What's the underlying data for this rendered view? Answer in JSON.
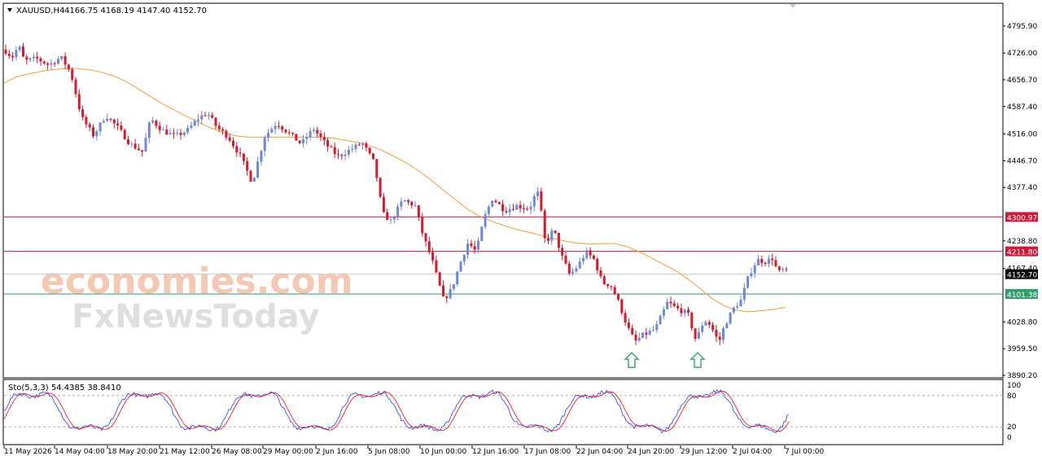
{
  "header": {
    "menu_icon": "triangle-down-icon",
    "symbol": "XAUUSD,H4",
    "ohlc": "4166.75 4168.19 4147.40 4152.70"
  },
  "watermark": {
    "line1": "economies.com",
    "line2": "FxNewsToday"
  },
  "oscillator": {
    "label": "Sto(5,3,3) 54.4385 38.8410",
    "levels": [
      100,
      80,
      20,
      0
    ],
    "main_color": "#1e3fff",
    "signal_color": "#ff0000"
  },
  "colors": {
    "bull": "#6a88de",
    "bear": "#d8182b",
    "ma": "#f0a030",
    "resistance": "#cc1a3a",
    "support": "#2e9e6b",
    "arrow": "#3aaa6e"
  },
  "chart_data": {
    "type": "candlestick",
    "symbol": "XAUUSD",
    "timeframe": "H4",
    "y_ticks": [
      "4795.90",
      "4726.00",
      "4656.70",
      "4587.40",
      "4516.00",
      "4446.70",
      "4377.40",
      "4238.80",
      "4167.40",
      "4028.80",
      "3959.50",
      "3890.20"
    ],
    "x_ticks": [
      "11 May 2026",
      "14 May 04:00",
      "18 May 20:00",
      "21 May 12:00",
      "26 May 08:00",
      "29 May 00:00",
      "2 Jun 16:00",
      "5 Jun 08:00",
      "10 Jun 00:00",
      "12 Jun 16:00",
      "17 Jun 08:00",
      "22 Jun 04:00",
      "24 Jun 20:00",
      "29 Jun 12:00",
      "2 Jul 04:00",
      "7 Jul 00:00"
    ],
    "ylim": [
      3890.2,
      4795.9
    ],
    "current_price": "4152.70",
    "levels": [
      {
        "value": 4300.97,
        "label": "4300.97",
        "kind": "resistance"
      },
      {
        "value": 4211.8,
        "label": "4211.80",
        "kind": "resistance"
      },
      {
        "value": 4101.38,
        "label": "4101.38",
        "kind": "support"
      }
    ],
    "ma_points": [
      [
        0,
        4648
      ],
      [
        15,
        4664
      ],
      [
        30,
        4672
      ],
      [
        45,
        4678
      ],
      [
        60,
        4683
      ],
      [
        75,
        4686
      ],
      [
        90,
        4686
      ],
      [
        105,
        4683
      ],
      [
        120,
        4676
      ],
      [
        135,
        4666
      ],
      [
        150,
        4652
      ],
      [
        165,
        4633
      ],
      [
        180,
        4613
      ],
      [
        195,
        4594
      ],
      [
        210,
        4577
      ],
      [
        225,
        4561
      ],
      [
        240,
        4545
      ],
      [
        255,
        4531
      ],
      [
        270,
        4520
      ],
      [
        285,
        4511
      ],
      [
        300,
        4508
      ],
      [
        315,
        4508
      ],
      [
        330,
        4508
      ],
      [
        345,
        4508
      ],
      [
        360,
        4508
      ],
      [
        375,
        4508
      ],
      [
        390,
        4507
      ],
      [
        405,
        4505
      ],
      [
        420,
        4500
      ],
      [
        435,
        4494
      ],
      [
        450,
        4485
      ],
      [
        465,
        4473
      ],
      [
        480,
        4457
      ],
      [
        495,
        4440
      ],
      [
        510,
        4420
      ],
      [
        525,
        4396
      ],
      [
        540,
        4370
      ],
      [
        555,
        4345
      ],
      [
        570,
        4320
      ],
      [
        585,
        4302
      ],
      [
        600,
        4289
      ],
      [
        615,
        4278
      ],
      [
        630,
        4268
      ],
      [
        645,
        4261
      ],
      [
        660,
        4253
      ],
      [
        675,
        4245
      ],
      [
        690,
        4238
      ],
      [
        705,
        4233
      ],
      [
        720,
        4231
      ],
      [
        735,
        4232
      ],
      [
        750,
        4232
      ],
      [
        765,
        4224
      ],
      [
        780,
        4211
      ],
      [
        795,
        4195
      ],
      [
        810,
        4178
      ],
      [
        825,
        4162
      ],
      [
        840,
        4140
      ],
      [
        855,
        4115
      ],
      [
        870,
        4089
      ],
      [
        885,
        4070
      ],
      [
        900,
        4059
      ],
      [
        915,
        4055
      ],
      [
        930,
        4058
      ],
      [
        945,
        4061
      ],
      [
        960,
        4067
      ]
    ],
    "anchors": [
      [
        0,
        4735
      ],
      [
        10,
        4715
      ],
      [
        18,
        4745
      ],
      [
        25,
        4705
      ],
      [
        40,
        4712
      ],
      [
        55,
        4695
      ],
      [
        70,
        4715
      ],
      [
        82,
        4675
      ],
      [
        95,
        4560
      ],
      [
        110,
        4512
      ],
      [
        125,
        4565
      ],
      [
        140,
        4532
      ],
      [
        155,
        4490
      ],
      [
        170,
        4470
      ],
      [
        180,
        4555
      ],
      [
        195,
        4525
      ],
      [
        210,
        4510
      ],
      [
        225,
        4525
      ],
      [
        240,
        4560
      ],
      [
        250,
        4570
      ],
      [
        262,
        4532
      ],
      [
        275,
        4510
      ],
      [
        290,
        4460
      ],
      [
        305,
        4390
      ],
      [
        320,
        4510
      ],
      [
        335,
        4545
      ],
      [
        350,
        4518
      ],
      [
        365,
        4490
      ],
      [
        380,
        4530
      ],
      [
        395,
        4490
      ],
      [
        410,
        4458
      ],
      [
        425,
        4475
      ],
      [
        440,
        4493
      ],
      [
        455,
        4440
      ],
      [
        465,
        4310
      ],
      [
        475,
        4290
      ],
      [
        490,
        4345
      ],
      [
        505,
        4330
      ],
      [
        515,
        4250
      ],
      [
        525,
        4195
      ],
      [
        540,
        4085
      ],
      [
        550,
        4115
      ],
      [
        560,
        4180
      ],
      [
        570,
        4235
      ],
      [
        580,
        4210
      ],
      [
        590,
        4300
      ],
      [
        600,
        4350
      ],
      [
        615,
        4318
      ],
      [
        630,
        4330
      ],
      [
        645,
        4322
      ],
      [
        655,
        4370
      ],
      [
        660,
        4310
      ],
      [
        665,
        4230
      ],
      [
        675,
        4270
      ],
      [
        685,
        4200
      ],
      [
        695,
        4150
      ],
      [
        705,
        4175
      ],
      [
        715,
        4210
      ],
      [
        725,
        4190
      ],
      [
        735,
        4130
      ],
      [
        745,
        4125
      ],
      [
        755,
        4080
      ],
      [
        765,
        4020
      ],
      [
        775,
        3977
      ],
      [
        785,
        3995
      ],
      [
        800,
        4010
      ],
      [
        815,
        4080
      ],
      [
        825,
        4065
      ],
      [
        840,
        4050
      ],
      [
        850,
        3980
      ],
      [
        860,
        4035
      ],
      [
        868,
        4020
      ],
      [
        878,
        3975
      ],
      [
        885,
        4020
      ],
      [
        895,
        4060
      ],
      [
        905,
        4085
      ],
      [
        915,
        4150
      ],
      [
        925,
        4190
      ],
      [
        935,
        4185
      ],
      [
        945,
        4195
      ],
      [
        950,
        4155
      ],
      [
        958,
        4165
      ],
      [
        964,
        4152
      ]
    ],
    "arrows": [
      {
        "x": 776,
        "price": 3928
      },
      {
        "x": 857,
        "price": 3928
      }
    ],
    "oscillator_range": [
      0,
      100
    ]
  }
}
